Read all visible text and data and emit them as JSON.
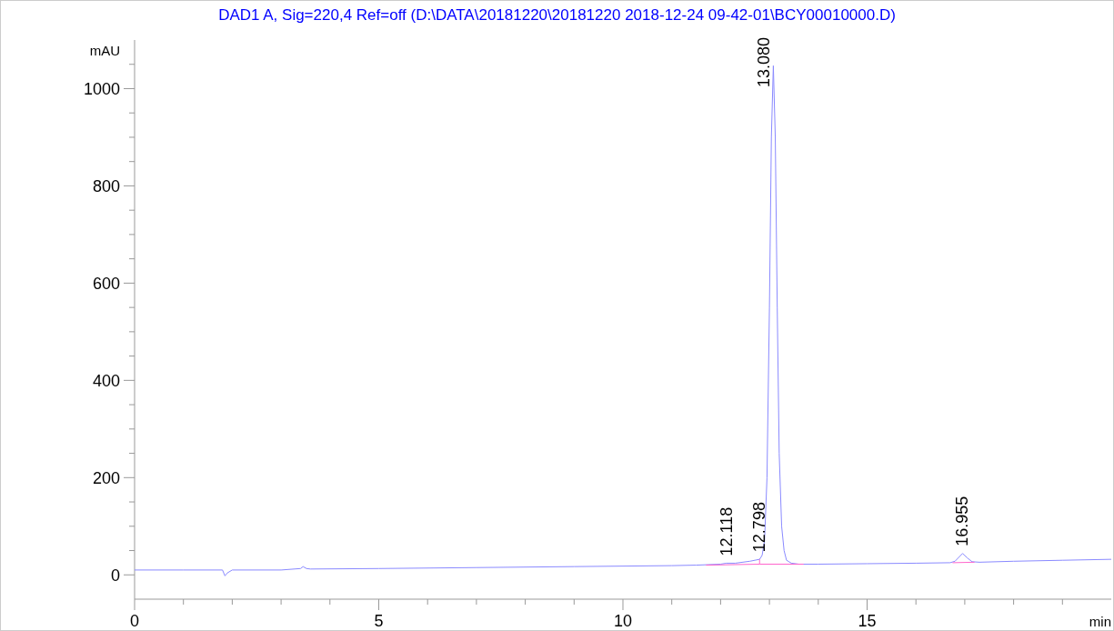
{
  "chart_data": {
    "type": "line",
    "title": "DAD1 A, Sig=220,4 Ref=off (D:\\DATA\\20181220\\20181220 2018-12-24 09-42-01\\BCY00010000.D)",
    "xlabel": "min",
    "ylabel": "mAU",
    "xlim": [
      0,
      20
    ],
    "ylim": [
      -50,
      1100
    ],
    "xticks": [
      0,
      {
        "value": 1,
        "label": null
      },
      {
        "value": 2,
        "label": null
      },
      {
        "value": 3,
        "label": null
      },
      {
        "value": 4,
        "label": null
      },
      5,
      {
        "value": 6,
        "label": null
      },
      {
        "value": 7,
        "label": null
      },
      {
        "value": 8,
        "label": null
      },
      {
        "value": 9,
        "label": null
      },
      10,
      {
        "value": 11,
        "label": null
      },
      {
        "value": 12,
        "label": null
      },
      {
        "value": 13,
        "label": null
      },
      {
        "value": 14,
        "label": null
      },
      15,
      {
        "value": 16,
        "label": null
      },
      {
        "value": 17,
        "label": null
      },
      {
        "value": 18,
        "label": null
      },
      {
        "value": 19,
        "label": null
      }
    ],
    "yticks": [
      0,
      {
        "value": 50,
        "label": null
      },
      {
        "value": 100,
        "label": null
      },
      {
        "value": 150,
        "label": null
      },
      200,
      {
        "value": 250,
        "label": null
      },
      {
        "value": 300,
        "label": null
      },
      {
        "value": 350,
        "label": null
      },
      400,
      {
        "value": 450,
        "label": null
      },
      {
        "value": 500,
        "label": null
      },
      {
        "value": 550,
        "label": null
      },
      600,
      {
        "value": 650,
        "label": null
      },
      {
        "value": 700,
        "label": null
      },
      {
        "value": 750,
        "label": null
      },
      800,
      {
        "value": 850,
        "label": null
      },
      {
        "value": 900,
        "label": null
      },
      {
        "value": 950,
        "label": null
      },
      1000,
      {
        "value": 1050,
        "label": null
      }
    ],
    "grid": false,
    "marker": "none",
    "line_style": "solid",
    "series": [
      {
        "color": "#8a8aff",
        "x": [
          0,
          1,
          1.8,
          1.85,
          1.9,
          2.0,
          3.0,
          3.4,
          3.45,
          3.52,
          3.6,
          5,
          7,
          9,
          10,
          11,
          11.5,
          12.0,
          12.118,
          12.3,
          12.6,
          12.798,
          12.85,
          12.9,
          12.95,
          13.0,
          13.04,
          13.08,
          13.12,
          13.16,
          13.2,
          13.25,
          13.3,
          13.35,
          13.45,
          13.6,
          14,
          15,
          16,
          16.7,
          16.8,
          16.955,
          17.05,
          17.15,
          17.3,
          18,
          19,
          20
        ],
        "values": [
          10,
          10,
          10,
          -2,
          4,
          10,
          10,
          13,
          17,
          13,
          12,
          13,
          15,
          17,
          18,
          19,
          20,
          22,
          24,
          24,
          28,
          32,
          40,
          70,
          200,
          550,
          900,
          1047,
          900,
          550,
          250,
          100,
          50,
          30,
          24,
          22,
          22,
          23,
          24,
          25,
          28,
          44,
          35,
          27,
          26,
          28,
          30,
          32
        ]
      },
      {
        "color": "#ff66cc",
        "x": [
          11.7,
          12.798,
          13.7
        ],
        "values": [
          20,
          22,
          22
        ]
      },
      {
        "color": "#ff66cc",
        "x": [
          12.798,
          12.798
        ],
        "values": [
          22,
          32
        ]
      },
      {
        "color": "#ff66cc",
        "x": [
          16.75,
          17.2
        ],
        "values": [
          25,
          26
        ]
      }
    ],
    "annotations": [
      {
        "text": "12.118",
        "x": 12.118,
        "y": 24
      },
      {
        "text": "12.798",
        "x": 12.798,
        "y": 32
      },
      {
        "text": "13.080",
        "x": 13.08,
        "y": 1047
      },
      {
        "text": "16.955",
        "x": 16.955,
        "y": 44
      }
    ]
  }
}
